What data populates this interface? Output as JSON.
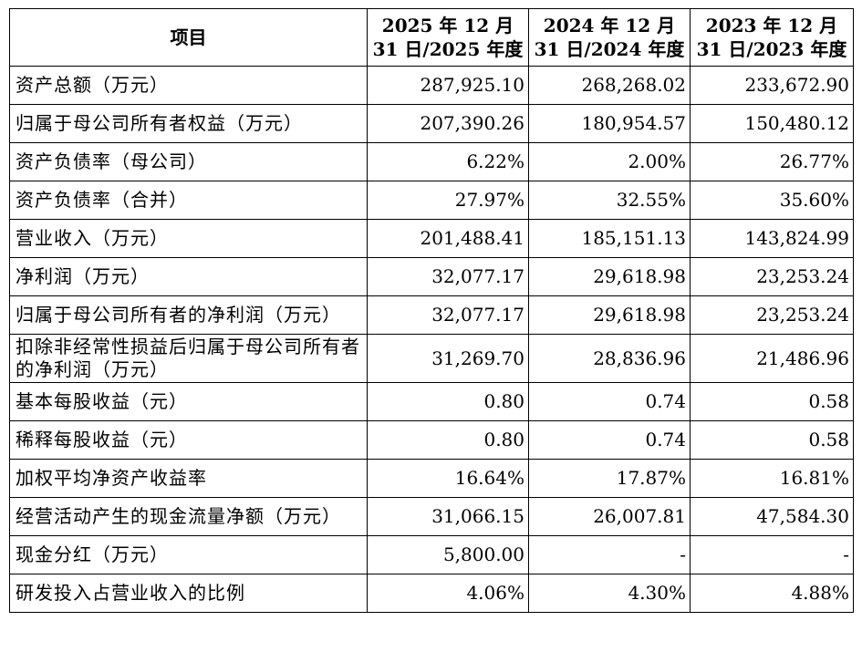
{
  "table": {
    "headers": [
      "项目",
      "2025 年 12 月 31 日/2025 年度",
      "2024 年 12 月 31 日/2024 年度",
      "2023 年 12 月 31 日/2023 年度"
    ],
    "rows": [
      {
        "label": "资产总额（万元）",
        "values": [
          "287,925.10",
          "268,268.02",
          "233,672.90"
        ]
      },
      {
        "label": "归属于母公司所有者权益（万元）",
        "values": [
          "207,390.26",
          "180,954.57",
          "150,480.12"
        ]
      },
      {
        "label": "资产负债率（母公司）",
        "values": [
          "6.22%",
          "2.00%",
          "26.77%"
        ]
      },
      {
        "label": "资产负债率（合并）",
        "values": [
          "27.97%",
          "32.55%",
          "35.60%"
        ]
      },
      {
        "label": "营业收入（万元）",
        "values": [
          "201,488.41",
          "185,151.13",
          "143,824.99"
        ]
      },
      {
        "label": "净利润（万元）",
        "values": [
          "32,077.17",
          "29,618.98",
          "23,253.24"
        ]
      },
      {
        "label": "归属于母公司所有者的净利润（万元）",
        "values": [
          "32,077.17",
          "29,618.98",
          "23,253.24"
        ]
      },
      {
        "label": "扣除非经常性损益后归属于母公司所有者的净利润（万元）",
        "values": [
          "31,269.70",
          "28,836.96",
          "21,486.96"
        ]
      },
      {
        "label": "基本每股收益（元）",
        "values": [
          "0.80",
          "0.74",
          "0.58"
        ]
      },
      {
        "label": "稀释每股收益（元）",
        "values": [
          "0.80",
          "0.74",
          "0.58"
        ]
      },
      {
        "label": "加权平均净资产收益率",
        "values": [
          "16.64%",
          "17.87%",
          "16.81%"
        ]
      },
      {
        "label": "经营活动产生的现金流量净额（万元）",
        "values": [
          "31,066.15",
          "26,007.81",
          "47,584.30"
        ]
      },
      {
        "label": "现金分红（万元）",
        "values": [
          "5,800.00",
          "-",
          "-"
        ]
      },
      {
        "label": "研发投入占营业收入的比例",
        "values": [
          "4.06%",
          "4.30%",
          "4.88%"
        ]
      }
    ]
  }
}
